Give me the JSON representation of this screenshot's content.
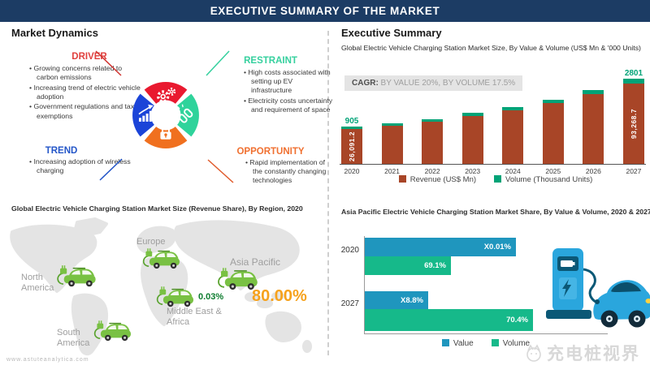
{
  "banner": {
    "title": "EXECUTIVE SUMMARY OF THE MARKET"
  },
  "market_dynamics": {
    "title": "Market Dynamics",
    "driver": {
      "label": "DRIVER",
      "points": [
        "Growing concerns related to carbon emissions",
        "Increasing trend of electric vehicle adoption",
        "Government regulations and tax exemptions"
      ]
    },
    "restraint": {
      "label": "RESTRAINT",
      "points": [
        "High costs associated with setting up EV infrastructure",
        "Electricity costs uncertainty and requirement of space"
      ]
    },
    "trend": {
      "label": "TREND",
      "points": [
        "Increasing adoption of wireless charging"
      ]
    },
    "opportunity": {
      "label": "OPPORTUNITY",
      "points": [
        "Rapid implementation of the constantly changing technologies"
      ]
    }
  },
  "executive_summary": {
    "title": "Executive Summary",
    "subtitle": "Global Electric Vehicle Charging Station Market Size, By Value & Volume (US$ Mn & '000 Units)",
    "cagr_label": "CAGR:",
    "cagr_text": " BY VALUE 20%, BY VOLUME 17.5%"
  },
  "chart_data": [
    {
      "type": "bar",
      "title": "Global Electric Vehicle Charging Station Market Size, By Value & Volume (US$ Mn & '000 Units)",
      "categories": [
        "2020",
        "2021",
        "2022",
        "2023",
        "2024",
        "2025",
        "2026",
        "2027"
      ],
      "series": [
        {
          "name": "Revenue (US$ Mn)",
          "color": "#a84527",
          "values": [
            26091.2,
            31309.4,
            37571.3,
            45085.6,
            54102.7,
            64923.2,
            77907.9,
            93268.7
          ]
        },
        {
          "name": "Volume (Thousand Units)",
          "color": "#00a377",
          "values": [
            905,
            1063,
            1249,
            1468,
            1725,
            2027,
            2382,
            2801
          ]
        }
      ],
      "annotations": {
        "first_revenue": "26,091.2",
        "first_volume": "905",
        "last_revenue": "93,268.7",
        "last_volume": "2801"
      },
      "cagr_value": "20%",
      "cagr_volume": "17.5%",
      "legend_position": "bottom"
    },
    {
      "type": "bar-horizontal",
      "title": "Asia Pacific Electric Vehicle Charging Station Market Share, By Value & Volume, 2020 & 2027",
      "categories": [
        "2020",
        "2027"
      ],
      "series": [
        {
          "name": "Value",
          "color": "#1f96be",
          "labels": [
            "X0.01%",
            "X8.8%"
          ],
          "width_pct": [
            81,
            34
          ]
        },
        {
          "name": "Volume",
          "color": "#16b98a",
          "labels": [
            "69.1%",
            "70.4%"
          ],
          "width_pct": [
            46,
            90
          ]
        }
      ],
      "legend_position": "bottom"
    }
  ],
  "region_map": {
    "title": "Global Electric Vehicle Charging Station Market Size (Revenue Share), By Region, 2020",
    "regions": [
      {
        "name": "North America"
      },
      {
        "name": "South America"
      },
      {
        "name": "Europe"
      },
      {
        "name": "Middle East & Africa",
        "share": "0.03%"
      },
      {
        "name": "Asia Pacific",
        "share": "80.00%"
      }
    ],
    "share_color_small": "#0e7d30",
    "share_color_big": "#f6a21d"
  },
  "watermarks": {
    "left": "www.astuteanalytica.com",
    "right": "充电桩视界"
  },
  "colors": {
    "banner": "#1c3c64",
    "driver": "#e0403e",
    "restraint": "#35d09e",
    "trend": "#2456c8",
    "opportunity": "#f07030",
    "revenue_bar": "#a84527",
    "volume_bar": "#00a377",
    "value_bar": "#1f96be",
    "volume_bar2": "#16b98a"
  }
}
